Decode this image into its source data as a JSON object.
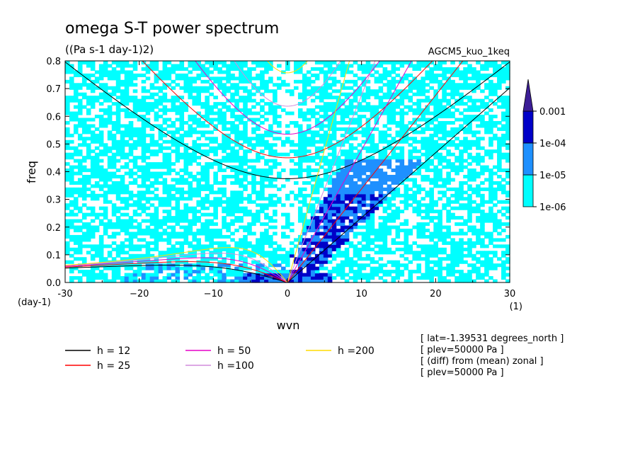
{
  "chart_data": {
    "type": "heatmap",
    "title": "omega S-T power spectrum",
    "subtitle": "((Pa s-1 day-1)2)",
    "dataset": "AGCM5_kuo_1keq",
    "xlabel": "wvn",
    "ylabel": "freq",
    "x_unit": "(1)",
    "y_unit": "(day-1)",
    "xlim": [
      -30,
      30
    ],
    "ylim": [
      0,
      0.8
    ],
    "x_ticks": [
      -30,
      -20,
      -10,
      0,
      10,
      20,
      30
    ],
    "x_tick_labels": [
      "-30",
      "−20",
      "−10",
      "0",
      "10",
      "20",
      "30"
    ],
    "y_ticks": [
      0.0,
      0.1,
      0.2,
      0.3,
      0.4,
      0.5,
      0.6,
      0.7,
      0.8
    ],
    "y_tick_labels": [
      "0.0",
      "0.1",
      "0.2",
      "0.3",
      "0.4",
      "0.5",
      "0.6",
      "0.7",
      "0.8"
    ],
    "colorbar": {
      "levels": [
        "1e-06",
        "1e-05",
        "1e-04",
        "0.001"
      ],
      "colors": [
        "#00ffff",
        "#1e90ff",
        "#0000c8",
        "#3c1e96"
      ]
    },
    "dispersion_curves": [
      {
        "name": "h = 12",
        "h": 12,
        "color": "#000000"
      },
      {
        "name": "h = 25",
        "h": 25,
        "color": "#ff0000"
      },
      {
        "name": "h = 50",
        "h": 50,
        "color": "#e600c8"
      },
      {
        "name": "h =100",
        "h": 100,
        "color": "#d28cdc"
      },
      {
        "name": "h =200",
        "h": 200,
        "color": "#ffdc00"
      }
    ],
    "annotations": [
      "[ lat=-1.39531 degrees_north ]",
      "[ plev=50000 Pa ]",
      "[ (diff) from (mean) zonal ]",
      "[ plev=50000 Pa ]"
    ]
  }
}
